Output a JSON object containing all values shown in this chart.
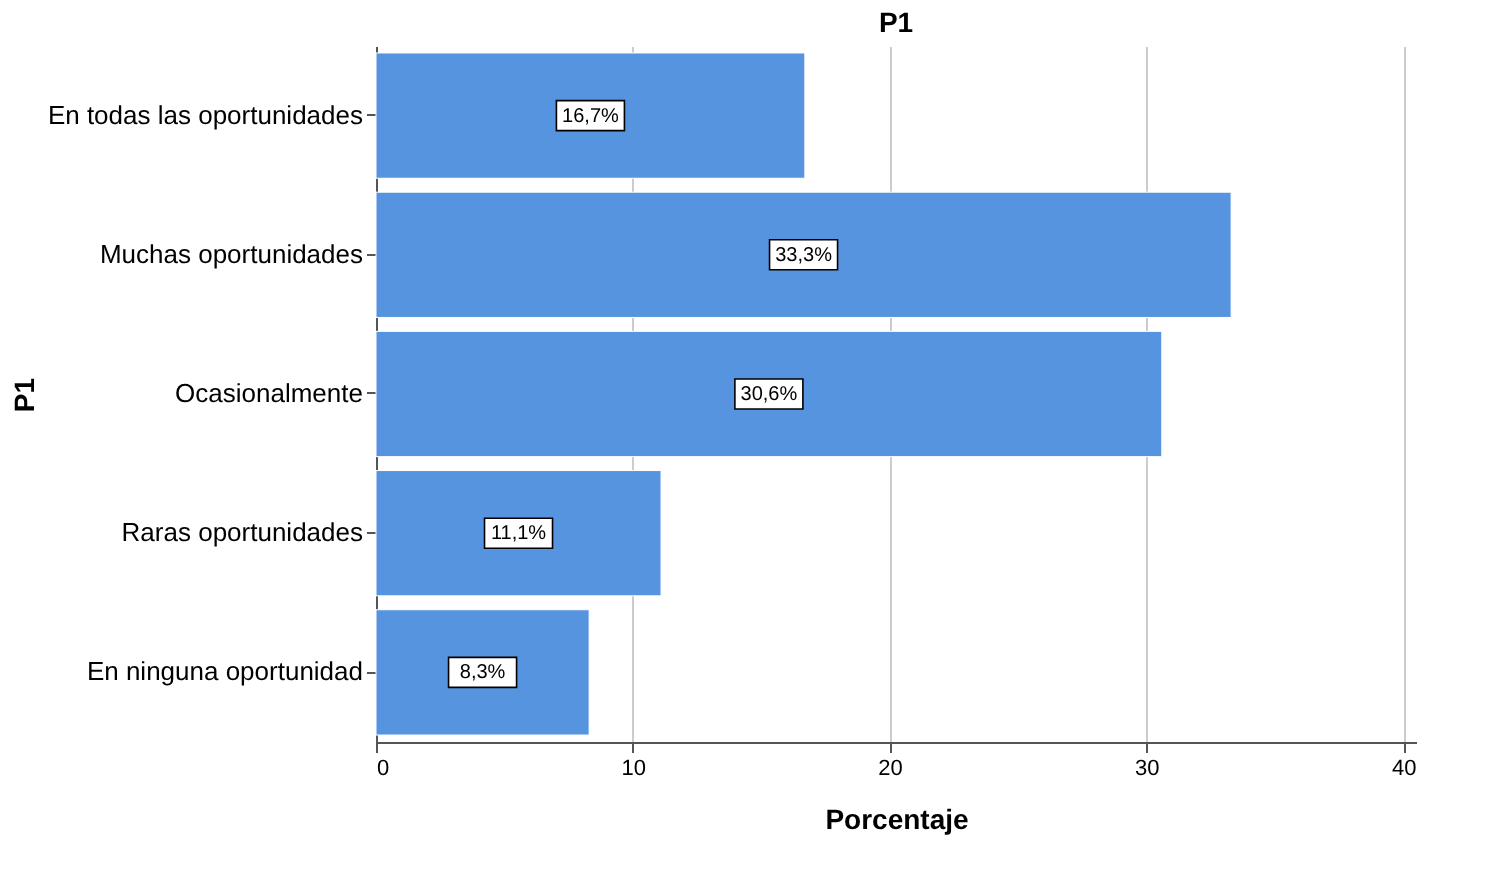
{
  "chart_data": {
    "type": "bar",
    "orientation": "horizontal",
    "title": "P1",
    "xlabel": "Porcentaje",
    "ylabel": "P1",
    "categories": [
      "En todas las oportunidades",
      "Muchas oportunidades",
      "Ocasionalmente",
      "Raras oportunidades",
      "En ninguna oportunidad"
    ],
    "values": [
      16.7,
      33.3,
      30.6,
      11.1,
      8.3
    ],
    "value_labels": [
      "16,7%",
      "33,3%",
      "30,6%",
      "11,1%",
      "8,3%"
    ],
    "color": "#5694e0",
    "xlim": [
      0,
      40.5
    ],
    "xticks": [
      0,
      10,
      20,
      30,
      40
    ],
    "grid": "x"
  }
}
